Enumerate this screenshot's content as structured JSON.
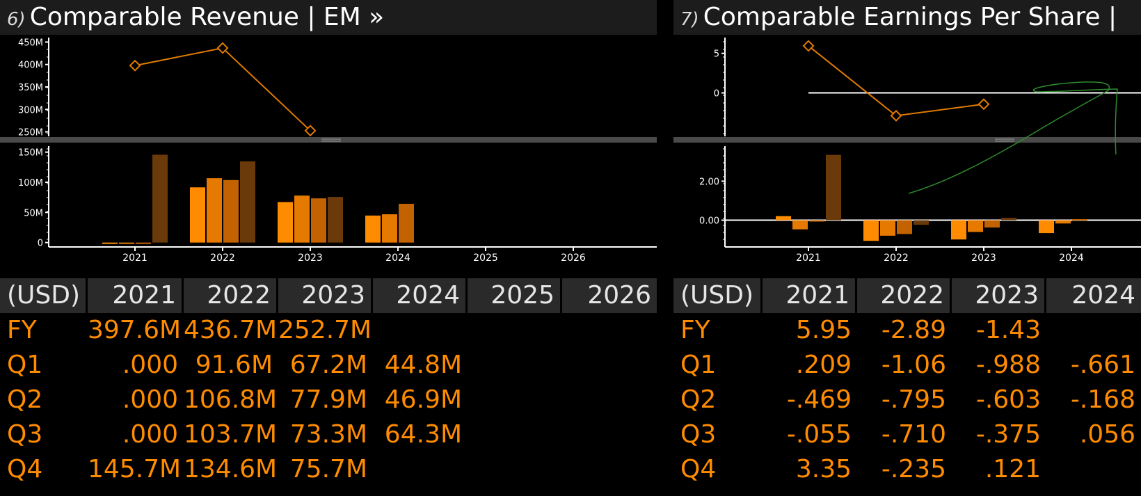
{
  "panel6": {
    "number": "6)",
    "title": "Comparable Revenue | EM »",
    "currency": "(USD)",
    "years": [
      "2021",
      "2022",
      "2023",
      "2024",
      "2025",
      "2026"
    ],
    "rows": [
      {
        "label": "FY",
        "values": [
          "397.6M",
          "436.7M",
          "252.7M",
          "",
          "",
          ""
        ]
      },
      {
        "label": "Q1",
        "values": [
          ".000",
          "91.6M",
          "67.2M",
          "44.8M",
          "",
          ""
        ]
      },
      {
        "label": "Q2",
        "values": [
          ".000",
          "106.8M",
          "77.9M",
          "46.9M",
          "",
          ""
        ]
      },
      {
        "label": "Q3",
        "values": [
          ".000",
          "103.7M",
          "73.3M",
          "64.3M",
          "",
          ""
        ]
      },
      {
        "label": "Q4",
        "values": [
          "145.7M",
          "134.6M",
          "75.7M",
          "",
          "",
          ""
        ]
      }
    ]
  },
  "panel7": {
    "number": "7)",
    "title": "Comparable Earnings Per Share |",
    "currency": "(USD)",
    "years": [
      "2021",
      "2022",
      "2023",
      "2024"
    ],
    "rows": [
      {
        "label": "FY",
        "values": [
          "5.95",
          "-2.89",
          "-1.43",
          ""
        ]
      },
      {
        "label": "Q1",
        "values": [
          ".209",
          "-1.06",
          "-.988",
          "-.661"
        ]
      },
      {
        "label": "Q2",
        "values": [
          "-.469",
          "-.795",
          "-.603",
          "-.168"
        ]
      },
      {
        "label": "Q3",
        "values": [
          "-.055",
          "-.710",
          "-.375",
          ".056"
        ]
      },
      {
        "label": "Q4",
        "values": [
          "3.35",
          "-.235",
          ".121",
          ""
        ]
      }
    ]
  },
  "chart_data": [
    {
      "type": "line",
      "x": [
        "2021",
        "2022",
        "2023"
      ],
      "values": [
        397.6,
        436.7,
        252.7
      ],
      "ylim": [
        240,
        460
      ],
      "yticks": [
        "250M",
        "300M",
        "350M",
        "400M",
        "450M"
      ],
      "ytick_values": [
        250,
        300,
        350,
        400,
        450
      ]
    },
    {
      "type": "bar",
      "categories": [
        "2021",
        "2022",
        "2023",
        "2024",
        "2025",
        "2026"
      ],
      "series": [
        {
          "values": [
            0,
            91.6,
            67.2,
            44.8,
            null,
            null
          ]
        },
        {
          "values": [
            0,
            106.8,
            77.9,
            46.9,
            null,
            null
          ]
        },
        {
          "values": [
            0,
            103.7,
            73.3,
            64.3,
            null,
            null
          ]
        },
        {
          "values": [
            145.7,
            134.6,
            75.7,
            null,
            null,
            null
          ]
        }
      ],
      "ylim": [
        -5,
        160
      ],
      "yticks": [
        "0",
        "50M",
        "100M",
        "150M"
      ],
      "ytick_values": [
        0,
        50,
        100,
        150
      ],
      "xticks": [
        "2021",
        "2022",
        "2023",
        "2024",
        "2025",
        "2026"
      ]
    },
    {
      "type": "line",
      "x": [
        "2021",
        "2022",
        "2023"
      ],
      "values": [
        5.95,
        -2.89,
        -1.43
      ],
      "ylim": [
        -5.5,
        7
      ],
      "yticks": [
        "5",
        "0"
      ],
      "ytick_values": [
        5,
        0
      ]
    },
    {
      "type": "bar",
      "categories": [
        "2021",
        "2022",
        "2023",
        "2024"
      ],
      "series": [
        {
          "values": [
            0.209,
            -1.06,
            -0.988,
            -0.661
          ]
        },
        {
          "values": [
            -0.469,
            -0.795,
            -0.603,
            -0.168
          ]
        },
        {
          "values": [
            -0.055,
            -0.71,
            -0.375,
            0.056
          ]
        },
        {
          "values": [
            3.35,
            -0.235,
            0.121,
            null
          ]
        }
      ],
      "ylim": [
        -1.3,
        3.8
      ],
      "yticks": [
        "2.00",
        "0.00"
      ],
      "ytick_values": [
        2,
        0
      ],
      "xticks": [
        "2021",
        "2022",
        "2023",
        "2024"
      ]
    }
  ],
  "colors": {
    "q1": "#ff8c00",
    "q2": "#ff8c00",
    "q3": "#c86400",
    "q4": "#6b3a0a",
    "line": "#e07b00",
    "text": "#ff8c00",
    "header_bg": "#2a2a2a",
    "annotation": "#2e8b2e"
  }
}
